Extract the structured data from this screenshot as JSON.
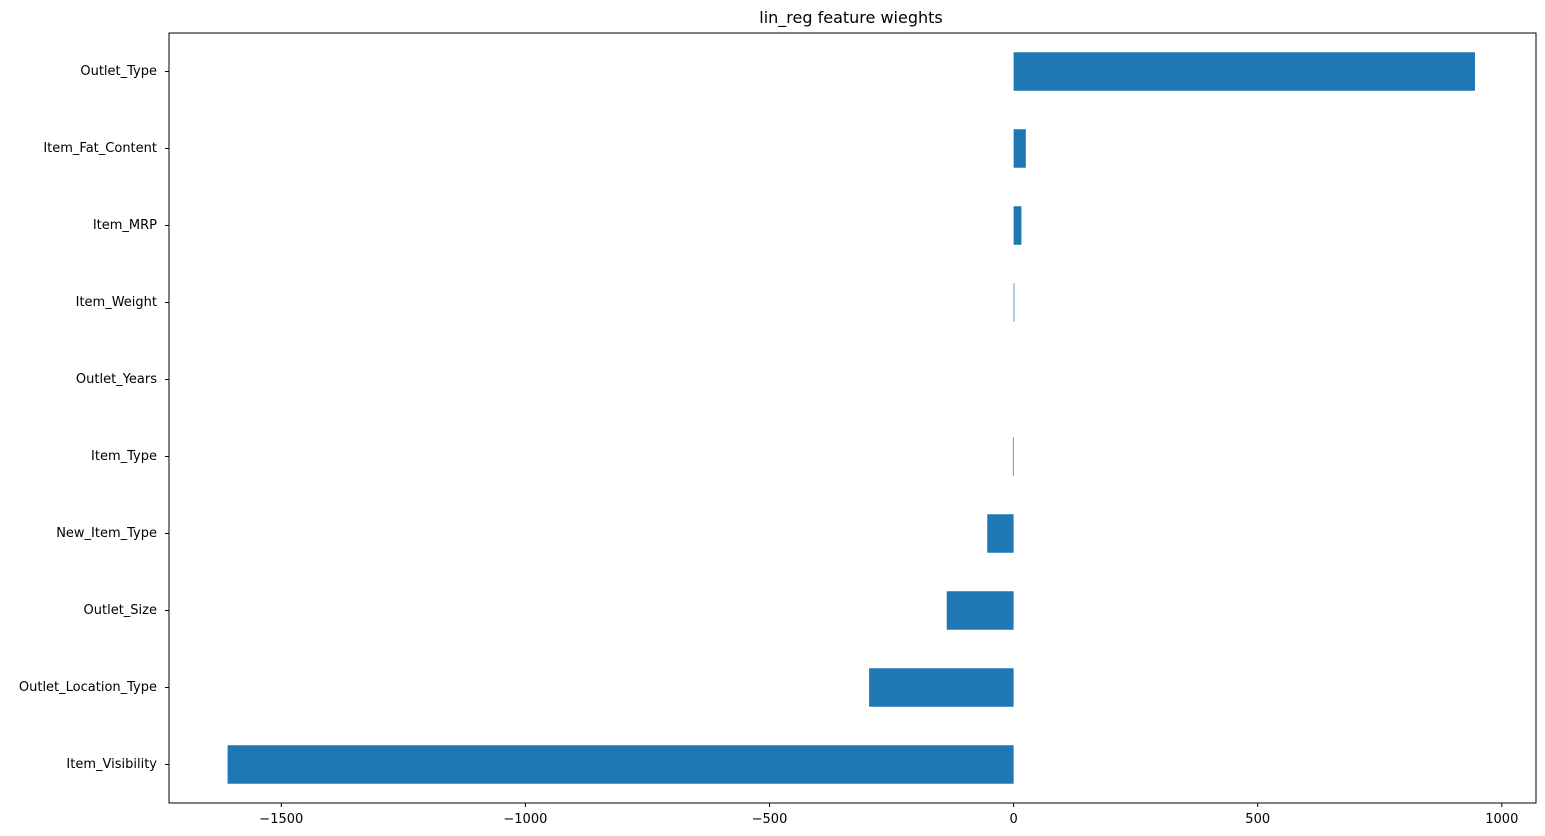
{
  "chart_data": {
    "type": "bar",
    "orientation": "horizontal",
    "title": "lin_reg feature wieghts",
    "xlabel": "",
    "ylabel": "",
    "categories": [
      "Outlet_Type",
      "Item_Fat_Content",
      "Item_MRP",
      "Item_Weight",
      "Outlet_Years",
      "Item_Type",
      "New_Item_Type",
      "Outlet_Size",
      "Outlet_Location_Type",
      "Item_Visibility"
    ],
    "values": [
      945,
      25,
      16,
      1.5,
      0,
      -1.5,
      -54,
      -137,
      -296,
      -1610
    ],
    "xlim": [
      -1730,
      1070
    ],
    "xticks": [
      -1500,
      -1000,
      -500,
      0,
      500,
      1000
    ],
    "xtick_labels": [
      "−1500",
      "−1000",
      "−500",
      "0",
      "500",
      "1000"
    ],
    "grid": false,
    "legend": "none",
    "bar_color": "#1f77b4"
  }
}
